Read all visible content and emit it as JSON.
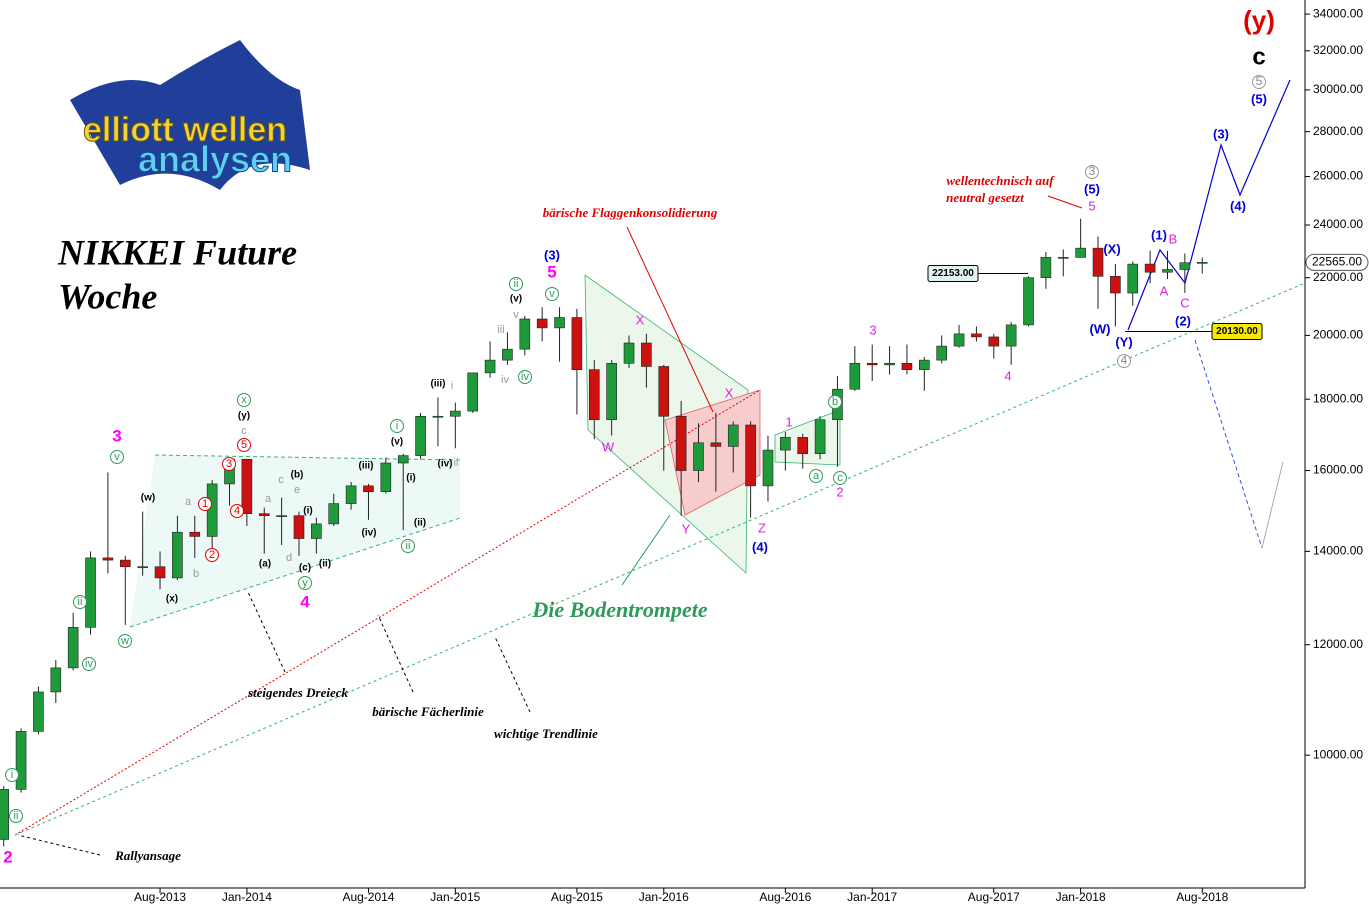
{
  "chart_data": {
    "type": "candlestick",
    "title": "NIKKEI Future",
    "subtitle": "Woche",
    "logo": [
      "elliott wellen",
      "analysen"
    ],
    "categories": [
      null,
      null,
      null,
      null,
      null,
      null,
      null,
      null,
      null,
      "Aug-2013",
      null,
      null,
      null,
      null,
      "Jan-2014",
      null,
      null,
      null,
      null,
      null,
      null,
      "Aug-2014",
      null,
      null,
      null,
      null,
      "Jan-2015",
      null,
      null,
      null,
      null,
      null,
      null,
      "Aug-2015",
      null,
      null,
      null,
      null,
      "Jan-2016",
      null,
      null,
      null,
      null,
      null,
      null,
      "Aug-2016",
      null,
      null,
      null,
      null,
      "Jan-2017",
      null,
      null,
      null,
      null,
      null,
      null,
      "Aug-2017",
      null,
      null,
      null,
      null,
      "Jan-2018",
      null,
      null,
      null,
      null,
      null,
      null,
      "Aug-2018"
    ],
    "open": [
      8700,
      9450,
      10400,
      11100,
      11550,
      12350,
      13850,
      13800,
      13650,
      13650,
      13400,
      14450,
      14350,
      15650,
      16300,
      14900,
      14850,
      14850,
      14300,
      14650,
      15150,
      15600,
      15450,
      16200,
      16400,
      17500,
      17500,
      17650,
      18800,
      19200,
      19550,
      20550,
      20250,
      20600,
      18900,
      17400,
      19100,
      19750,
      19000,
      17500,
      16000,
      16750,
      16650,
      17250,
      15600,
      16550,
      16900,
      16450,
      17400,
      18300,
      19100,
      19050,
      19100,
      18900,
      19200,
      19650,
      20050,
      19950,
      19650,
      20350,
      22000,
      22750,
      22750,
      23100,
      22050,
      21450,
      22500,
      22200,
      22300,
      22550
    ],
    "high": [
      9500,
      10450,
      11200,
      11700,
      12650,
      14000,
      15950,
      13900,
      14950,
      14000,
      14850,
      14850,
      15750,
      16350,
      16300,
      15050,
      15300,
      14950,
      14800,
      15400,
      15700,
      15650,
      16350,
      16450,
      17600,
      18050,
      17900,
      18800,
      19800,
      20100,
      20650,
      20950,
      20950,
      20900,
      19200,
      19200,
      20000,
      20050,
      19050,
      17950,
      17300,
      17600,
      17350,
      17350,
      16950,
      17050,
      17000,
      17500,
      18700,
      19650,
      19700,
      19650,
      19700,
      19300,
      20000,
      20350,
      20300,
      20050,
      20450,
      22050,
      22950,
      23050,
      24250,
      23550,
      22500,
      22600,
      23000,
      23000,
      22900,
      22750
    ],
    "low": [
      8600,
      9400,
      10350,
      10900,
      11500,
      12200,
      13500,
      12400,
      13450,
      13150,
      13350,
      13850,
      14000,
      15100,
      14600,
      13950,
      14150,
      13900,
      13950,
      14600,
      15000,
      14750,
      15400,
      14500,
      16300,
      16650,
      16600,
      17600,
      18650,
      19050,
      19350,
      19800,
      19150,
      17550,
      16850,
      16950,
      18950,
      18350,
      16000,
      14850,
      15700,
      15450,
      15950,
      14800,
      15200,
      16000,
      16050,
      16300,
      16100,
      18250,
      18550,
      18750,
      18750,
      18250,
      19100,
      19600,
      19800,
      19250,
      19050,
      20300,
      21600,
      22050,
      22750,
      20900,
      20300,
      21000,
      21800,
      21950,
      21450,
      22150
    ],
    "close": [
      9450,
      10400,
      11100,
      11550,
      12350,
      13850,
      13800,
      13650,
      13650,
      13400,
      14450,
      14350,
      15650,
      16300,
      14900,
      14850,
      14850,
      14300,
      14650,
      15150,
      15600,
      15450,
      16200,
      16400,
      17500,
      17500,
      17650,
      18800,
      19200,
      19550,
      20550,
      20250,
      20600,
      18900,
      17400,
      19100,
      19750,
      19000,
      17500,
      16000,
      16750,
      16650,
      17250,
      15600,
      16550,
      16900,
      16450,
      17400,
      18300,
      19100,
      19050,
      19100,
      18900,
      19200,
      19650,
      20050,
      19950,
      19650,
      20350,
      22000,
      22750,
      22750,
      23100,
      22050,
      21450,
      22500,
      22200,
      22300,
      22550,
      22565
    ],
    "up_color": "#1f9a3a",
    "down_color": "#cc1111",
    "log_scale": true,
    "grid": false,
    "ylim": [
      8030,
      34800
    ],
    "yticks": [
      {
        "value": 10000,
        "label": "10000.00"
      },
      {
        "value": 12000,
        "label": "12000.00"
      },
      {
        "value": 14000,
        "label": "14000.00"
      },
      {
        "value": 16000,
        "label": "16000.00"
      },
      {
        "value": 18000,
        "label": "18000.00"
      },
      {
        "value": 20000,
        "label": "20000.00"
      },
      {
        "value": 22000,
        "label": "22000.00"
      },
      {
        "value": 24000,
        "label": "24000.00"
      },
      {
        "value": 26000,
        "label": "26000.00"
      },
      {
        "value": 28000,
        "label": "28000.00"
      },
      {
        "value": 30000,
        "label": "30000.00"
      },
      {
        "value": 32000,
        "label": "32000.00"
      },
      {
        "value": 34000,
        "label": "34000.00"
      }
    ],
    "price_markers": [
      {
        "value": 22565,
        "label": "22565.00"
      },
      {
        "value": 22153,
        "label": "22153.00"
      },
      {
        "value": 20130,
        "label": "20130.00"
      }
    ],
    "annotations": [
      "(y)",
      "c",
      "5",
      "(5)",
      "(3)",
      "(4)",
      "wellentechnisch auf",
      "neutral gesetzt",
      "3",
      "(5)",
      "5",
      "(X)",
      "(1)",
      "B",
      "A",
      "C",
      "(2)",
      "(W)",
      "(Y)",
      "4",
      "bärische Flaggenkonsolidierung",
      "(3)",
      "5",
      "ii",
      "(v)",
      "v",
      "v",
      "iii",
      "iv",
      "iv",
      "X",
      "W",
      "X",
      "Y",
      "Z",
      "(4)",
      "3",
      "4",
      "1",
      "b",
      "a",
      "c",
      "2",
      "Die Bodentrompete",
      "3",
      "v",
      "(w)",
      "(x)",
      "w",
      "ii",
      "iv",
      "i",
      "ii",
      "2",
      "x",
      "(y)",
      "c",
      "5",
      "3",
      "4",
      "1",
      "2",
      "a",
      "b",
      "(a)",
      "(b)",
      "c",
      "e",
      "a",
      "d",
      "(c)",
      "y",
      "4",
      "(i)",
      "(ii)",
      "(iii)",
      "(iv)",
      "i",
      "(v)",
      "(i)",
      "(ii)",
      "ii",
      "(iii)",
      "i",
      "(iv)",
      "ii",
      "steigendes Dreieck",
      "bärische Fächerlinie",
      "wichtige Trendlinie",
      "Rallyansage"
    ]
  }
}
